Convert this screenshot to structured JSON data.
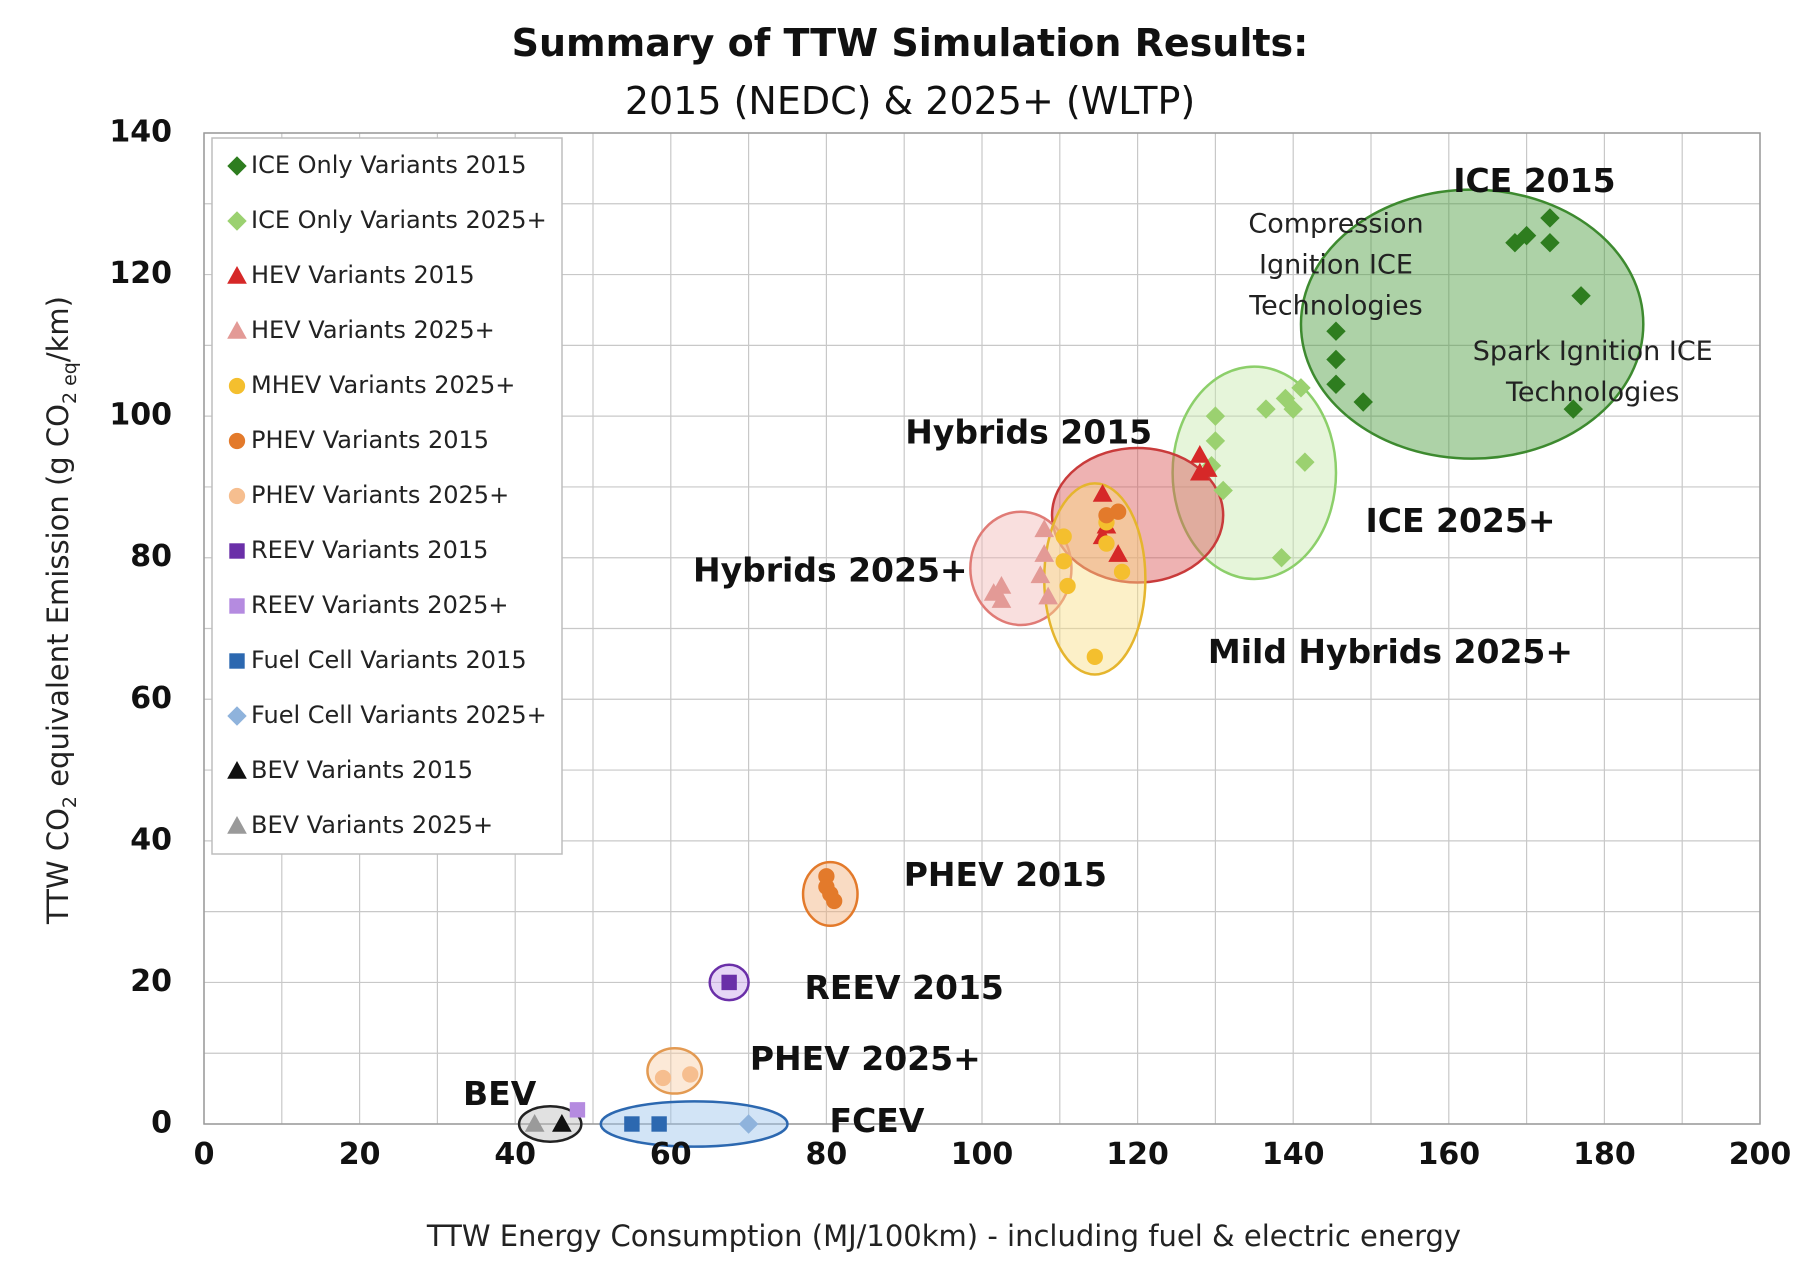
{
  "chart_data": {
    "type": "scatter",
    "title": "Summary of TTW Simulation Results:",
    "subtitle": "2015 (NEDC) & 2025+ (WLTP)",
    "xlabel": "TTW Energy Consumption (MJ/100km) - including fuel & electric energy",
    "ylabel_parts": [
      "TTW CO",
      "2",
      " equivalent Emission  (g CO",
      "2 eq",
      "/km)"
    ],
    "xlim": [
      0,
      200
    ],
    "ylim": [
      0,
      140
    ],
    "x_ticks": [
      0,
      20,
      40,
      60,
      80,
      100,
      120,
      140,
      160,
      180,
      200
    ],
    "y_ticks": [
      0,
      20,
      40,
      60,
      80,
      100,
      120,
      140
    ],
    "grid": true,
    "legend_position": "top-left",
    "series": [
      {
        "name": "ICE Only Variants 2015",
        "marker": "diamond",
        "color": "#2e7d1f",
        "points": [
          [
            145.5,
            112
          ],
          [
            145.5,
            108
          ],
          [
            145.5,
            104.5
          ],
          [
            149,
            102
          ],
          [
            168.5,
            124.5
          ],
          [
            170,
            125.5
          ],
          [
            173,
            128
          ],
          [
            173,
            124.5
          ],
          [
            177,
            117
          ],
          [
            176,
            101
          ]
        ]
      },
      {
        "name": "ICE Only Variants 2025+",
        "marker": "diamond",
        "color": "#9bd170",
        "points": [
          [
            130,
            100
          ],
          [
            130,
            96.5
          ],
          [
            129.5,
            93
          ],
          [
            131,
            89.5
          ],
          [
            136.5,
            101
          ],
          [
            139,
            102.5
          ],
          [
            140,
            101
          ],
          [
            141,
            104
          ],
          [
            141.5,
            93.5
          ],
          [
            138.5,
            80
          ]
        ]
      },
      {
        "name": "HEV Variants 2015",
        "marker": "triangle",
        "color": "#d62828",
        "points": [
          [
            115.5,
            89
          ],
          [
            116,
            84.5
          ],
          [
            115.5,
            83
          ],
          [
            117.5,
            80.5
          ],
          [
            128,
            94.5
          ],
          [
            128,
            92
          ],
          [
            129,
            92.5
          ]
        ]
      },
      {
        "name": "HEV Variants 2025+",
        "marker": "triangle",
        "color": "#e39a96",
        "points": [
          [
            101.5,
            75
          ],
          [
            102.5,
            76
          ],
          [
            102.5,
            74
          ],
          [
            108,
            84
          ],
          [
            108,
            80.5
          ],
          [
            107.5,
            77.5
          ],
          [
            108.5,
            74.5
          ]
        ]
      },
      {
        "name": "MHEV Variants 2025+",
        "marker": "circle",
        "color": "#f4bf2e",
        "points": [
          [
            110.5,
            83
          ],
          [
            110.5,
            79.5
          ],
          [
            111,
            76
          ],
          [
            116,
            85
          ],
          [
            116,
            82
          ],
          [
            118,
            78
          ],
          [
            114.5,
            66
          ]
        ]
      },
      {
        "name": "PHEV Variants 2015",
        "marker": "circle",
        "color": "#e37a2b",
        "points": [
          [
            80,
            35
          ],
          [
            80,
            33.5
          ],
          [
            80.5,
            32.5
          ],
          [
            81,
            31.5
          ],
          [
            116,
            86
          ],
          [
            117.5,
            86.5
          ]
        ]
      },
      {
        "name": "PHEV Variants 2025+",
        "marker": "circle",
        "color": "#f6be8f",
        "points": [
          [
            59,
            6.5
          ],
          [
            62.5,
            7
          ]
        ]
      },
      {
        "name": "REEV Variants 2015",
        "marker": "square",
        "color": "#6a2fa8",
        "points": [
          [
            67.5,
            20
          ]
        ]
      },
      {
        "name": "REEV Variants 2025+",
        "marker": "square",
        "color": "#b58be0",
        "points": [
          [
            48,
            2
          ]
        ]
      },
      {
        "name": "Fuel Cell Variants 2015",
        "marker": "square",
        "color": "#2c68b0",
        "points": [
          [
            55,
            0
          ],
          [
            58.5,
            0
          ]
        ]
      },
      {
        "name": "Fuel Cell Variants 2025+",
        "marker": "diamond",
        "color": "#8fb3dc",
        "points": [
          [
            70,
            0
          ]
        ]
      },
      {
        "name": "BEV Variants 2015",
        "marker": "triangle",
        "color": "#111111",
        "points": [
          [
            46,
            0
          ]
        ]
      },
      {
        "name": "BEV Variants 2025+",
        "marker": "triangle",
        "color": "#9a9a9a",
        "points": [
          [
            42.5,
            0
          ]
        ]
      }
    ],
    "groups": [
      {
        "label": "ICE 2015",
        "cx": 163,
        "cy": 113,
        "rx": 22,
        "ry": 19,
        "fill": "#4a9b3c",
        "stroke": "#3d8a2f"
      },
      {
        "label": "ICE 2025+",
        "cx": 135,
        "cy": 92,
        "rx": 10.5,
        "ry": 15,
        "fill": "#c8e8ae",
        "stroke": "#8ccf6a"
      },
      {
        "label": "Hybrids 2015",
        "cx": 120,
        "cy": 86,
        "rx": 11,
        "ry": 9.5,
        "fill": "#d95555",
        "stroke": "#c93b3b"
      },
      {
        "label": "Hybrids 2025+",
        "cx": 105,
        "cy": 78.5,
        "rx": 6.5,
        "ry": 8,
        "fill": "#f2b9b5",
        "stroke": "#e07b76"
      },
      {
        "label": "Mild Hybrids 2025+",
        "cx": 114.5,
        "cy": 77,
        "rx": 6.5,
        "ry": 13.5,
        "fill": "#f8dd84",
        "stroke": "#e5b52e"
      },
      {
        "label": "PHEV 2015",
        "cx": 80.5,
        "cy": 32.5,
        "rx": 3.5,
        "ry": 4.5,
        "fill": "#f2b07a",
        "stroke": "#e37a2b"
      },
      {
        "label": "REEV 2015",
        "cx": 67.5,
        "cy": 20,
        "rx": 2.5,
        "ry": 2.5,
        "fill": "#c8a5ea",
        "stroke": "#6a2fa8"
      },
      {
        "label": "PHEV 2025+",
        "cx": 60.5,
        "cy": 7.5,
        "rx": 3.5,
        "ry": 3.2,
        "fill": "#f8cfa7",
        "stroke": "#e39a52"
      },
      {
        "label": "FCEV",
        "cx": 63,
        "cy": 0,
        "rx": 12,
        "ry": 3.2,
        "fill": "#9cc3ea",
        "stroke": "#2c68b0"
      },
      {
        "label": "BEV",
        "cx": 44.5,
        "cy": 0,
        "rx": 4,
        "ry": 2.5,
        "fill": "#bdbdbd",
        "stroke": "#222222"
      }
    ],
    "annotations": [
      {
        "text": "ICE 2015",
        "x": 171,
        "y": 133,
        "style": "bold"
      },
      {
        "text": "Compression",
        "x": 145.5,
        "y": 127,
        "style": "normal"
      },
      {
        "text": "Ignition ICE",
        "x": 145.5,
        "y": 121.2,
        "style": "normal"
      },
      {
        "text": "Technologies",
        "x": 145.5,
        "y": 115.4,
        "style": "normal"
      },
      {
        "text": "Spark Ignition ICE",
        "x": 178.5,
        "y": 109,
        "style": "normal"
      },
      {
        "text": "Technologies",
        "x": 178.5,
        "y": 103.2,
        "style": "normal"
      },
      {
        "text": "Hybrids 2015",
        "x": 106,
        "y": 97.5,
        "style": "bold"
      },
      {
        "text": "ICE 2025+",
        "x": 161.5,
        "y": 85,
        "style": "bold"
      },
      {
        "text": "Hybrids 2025+",
        "x": 80.5,
        "y": 78,
        "style": "bold"
      },
      {
        "text": "Mild Hybrids 2025+",
        "x": 152.5,
        "y": 66.5,
        "style": "bold"
      },
      {
        "text": "PHEV 2015",
        "x": 103,
        "y": 35,
        "style": "bold"
      },
      {
        "text": "REEV 2015",
        "x": 90,
        "y": 19,
        "style": "bold"
      },
      {
        "text": "PHEV 2025+",
        "x": 85,
        "y": 9,
        "style": "bold"
      },
      {
        "text": "BEV",
        "x": 38,
        "y": 4,
        "style": "bold"
      },
      {
        "text": "FCEV",
        "x": 86.5,
        "y": 0.2,
        "style": "bold"
      }
    ]
  }
}
